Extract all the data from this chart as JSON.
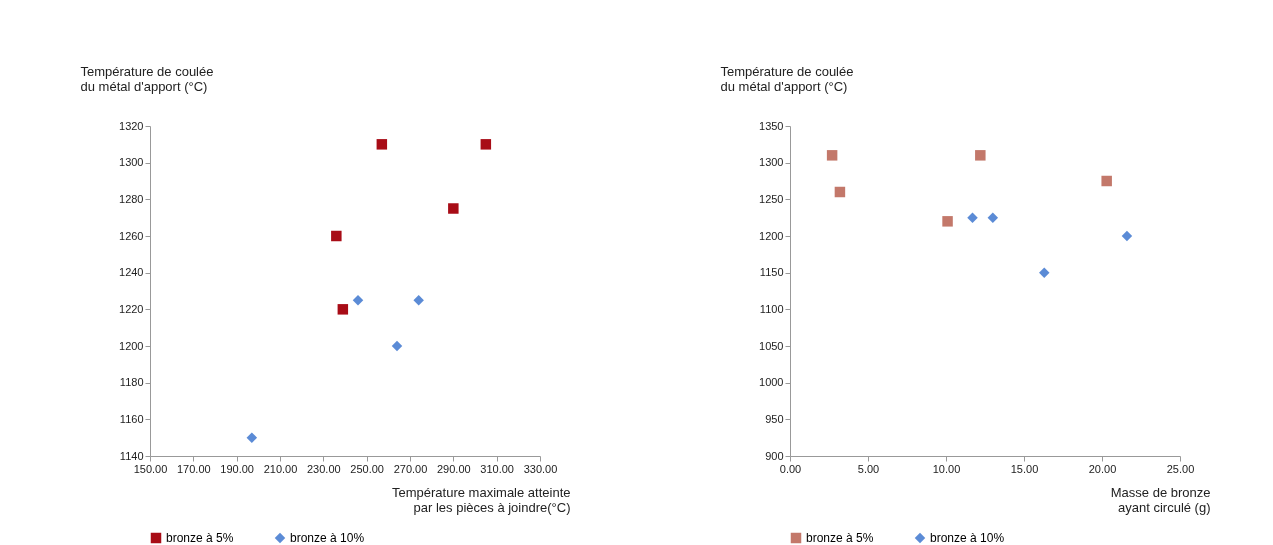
{
  "chart_data": [
    {
      "type": "scatter",
      "xlabel": "Température maximale atteinte\npar les pièces à joindre(°C)",
      "ylabel": "Température de coulée\ndu métal d'apport (°C)",
      "xlim": [
        150,
        330
      ],
      "xticks": [
        {
          "value": 150,
          "label": "150.00"
        },
        {
          "value": 170,
          "label": "170.00"
        },
        {
          "value": 190,
          "label": "190.00"
        },
        {
          "value": 210,
          "label": "210.00"
        },
        {
          "value": 230,
          "label": "230.00"
        },
        {
          "value": 250,
          "label": "250.00"
        },
        {
          "value": 270,
          "label": "270.00"
        },
        {
          "value": 290,
          "label": "290.00"
        },
        {
          "value": 310,
          "label": "310.00"
        },
        {
          "value": 330,
          "label": "330.00"
        }
      ],
      "ylim": [
        1140,
        1320
      ],
      "yticks": [
        1140,
        1160,
        1180,
        1200,
        1220,
        1240,
        1260,
        1280,
        1300,
        1320
      ],
      "grid": false,
      "legend": "bottom",
      "series": [
        {
          "name": "bronze à 5%",
          "color": "#a80c16",
          "marker": "square",
          "x": [
            257,
            305,
            290,
            236,
            239
          ],
          "values": [
            1310,
            1310,
            1275,
            1260,
            1220
          ]
        },
        {
          "name": "bronze à 10%",
          "color": "#5b8bd6",
          "marker": "diamond",
          "x": [
            246,
            274,
            264,
            197
          ],
          "values": [
            1225,
            1225,
            1200,
            1150
          ]
        }
      ]
    },
    {
      "type": "scatter",
      "xlabel": "Masse de bronze\nayant circulé (g)",
      "ylabel": "Température de coulée\ndu métal d'apport (°C)",
      "xlim": [
        0,
        25
      ],
      "xticks": [
        {
          "value": 0,
          "label": "0.00"
        },
        {
          "value": 5,
          "label": "5.00"
        },
        {
          "value": 10,
          "label": "10.00"
        },
        {
          "value": 15,
          "label": "15.00"
        },
        {
          "value": 20,
          "label": "20.00"
        },
        {
          "value": 25,
          "label": "25.00"
        }
      ],
      "ylim": [
        900,
        1350
      ],
      "yticks": [
        900,
        950,
        1000,
        1050,
        1100,
        1150,
        1200,
        1250,
        1300,
        1350
      ],
      "grid": false,
      "legend": "bottom",
      "series": [
        {
          "name": "bronze à 5%",
          "color": "#c3786a",
          "marker": "square",
          "x": [
            2.7,
            3.2,
            12.2,
            10.1,
            20.3
          ],
          "values": [
            1310,
            1260,
            1310,
            1220,
            1275
          ]
        },
        {
          "name": "bronze à 10%",
          "color": "#5b8bd6",
          "marker": "diamond",
          "x": [
            11.7,
            13.0,
            16.3,
            21.6
          ],
          "values": [
            1225,
            1225,
            1150,
            1200
          ]
        }
      ]
    }
  ]
}
